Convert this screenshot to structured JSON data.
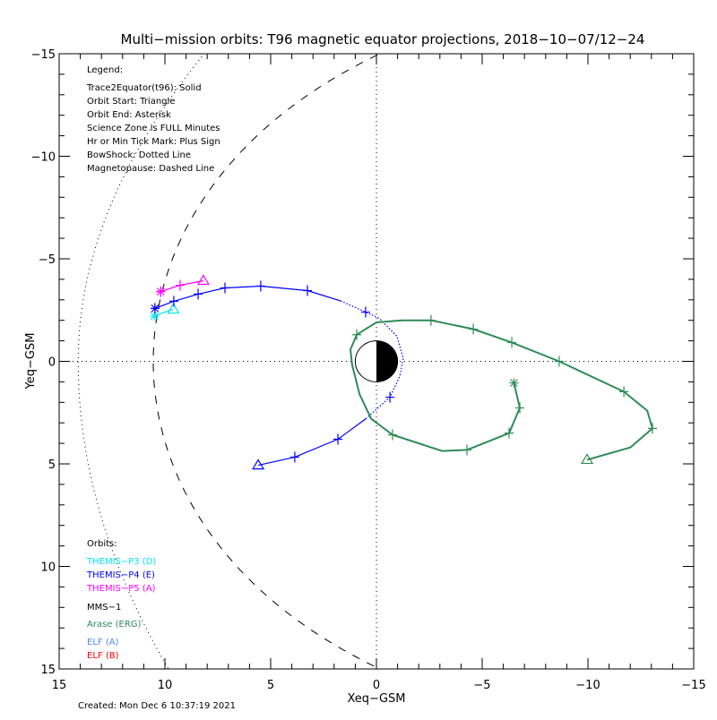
{
  "chart_data": {
    "type": "line",
    "title": "Multi−mission orbits: T96 magnetic equator projections, 2018−10−07/12−24",
    "xlabel": "Xeq−GSM",
    "ylabel": "Yeq−GSM",
    "xlim": [
      15,
      -15
    ],
    "ylim": [
      -15,
      15
    ],
    "x_tick_labels": [
      "15",
      "10",
      "5",
      "0",
      "−5",
      "−10",
      "−15"
    ],
    "x_tick_values": [
      15,
      10,
      5,
      0,
      -5,
      -10,
      -15
    ],
    "y_tick_labels": [
      "−15",
      "−10",
      "−5",
      "0",
      "5",
      "10",
      "15"
    ],
    "y_tick_values": [
      -15,
      -10,
      -5,
      0,
      5,
      10,
      15
    ],
    "grid": false,
    "zero_lines": "dotted",
    "legend": {
      "heading": "Legend:",
      "lines": [
        "Trace2Equator(t96): Solid",
        "Orbit Start: Triangle",
        "Orbit End: Asterisk",
        "Science Zone is FULL Minutes",
        "Hr or Min Tick Mark: Plus Sign",
        "BowShock: Dotted Line",
        "Magnetopause: Dashed Line"
      ],
      "placement": "top-left"
    },
    "orbits_legend": {
      "heading": "Orbits:",
      "entries": [
        {
          "label": "THEMIS−P3 (D)",
          "color": "#00e5ee"
        },
        {
          "label": "THEMIS−P4 (E)",
          "color": "#0000ff"
        },
        {
          "label": "THEMIS−P5 (A)",
          "color": "#ff00ff"
        },
        {
          "label": "MMS−1",
          "color": "#000000"
        },
        {
          "label": "Arase (ERG)",
          "color": "#2e8b57"
        },
        {
          "label": "ELF (A)",
          "color": "#4a8af4"
        },
        {
          "label": "ELF (B)",
          "color": "#ff0000"
        }
      ],
      "placement": "bottom-left"
    },
    "boundaries": {
      "bowshock": {
        "nose_x": 14.1,
        "x_at_y_minus15": 8.14,
        "x_at_y_plus15": 9.83
      },
      "magnetopause": {
        "r0": 10.55,
        "alpha": 0.5
      }
    },
    "series": [
      {
        "name": "THEMIS−P3 (D)",
        "color": "#00e5ee",
        "points": [
          [
            9.6,
            -2.53
          ],
          [
            10.1,
            -2.37
          ],
          [
            10.5,
            -2.2
          ]
        ],
        "ticks": [],
        "dotted_from": null,
        "dotted_to": null
      },
      {
        "name": "THEMIS−P4 (E)",
        "color": "#0000ff",
        "points": [
          [
            5.59,
            5.07
          ],
          [
            3.86,
            4.67
          ],
          [
            1.82,
            3.8
          ],
          [
            0.5,
            2.8
          ],
          [
            -0.64,
            1.75
          ],
          [
            -1.1,
            0.74
          ],
          [
            -1.27,
            -0.13
          ],
          [
            -0.97,
            -1.22
          ],
          [
            -0.13,
            -2.1
          ],
          [
            0.51,
            -2.4
          ],
          [
            1.7,
            -2.95
          ],
          [
            3.26,
            -3.45
          ],
          [
            5.47,
            -3.67
          ],
          [
            7.16,
            -3.58
          ],
          [
            8.43,
            -3.28
          ],
          [
            9.58,
            -2.93
          ],
          [
            10.47,
            -2.58
          ]
        ],
        "ticks": [
          1,
          2,
          4,
          9,
          11,
          12,
          13,
          14,
          15,
          16
        ],
        "dotted_from": 3,
        "dotted_to": 10
      },
      {
        "name": "THEMIS−P5 (A)",
        "color": "#ff00ff",
        "points": [
          [
            8.18,
            -3.93
          ],
          [
            9.28,
            -3.71
          ],
          [
            10.2,
            -3.4
          ]
        ],
        "ticks": [
          1,
          2
        ],
        "dotted_from": null,
        "dotted_to": null
      },
      {
        "name": "Arase (ERG)",
        "color": "#2e8b57",
        "points": [
          [
            -9.96,
            4.8
          ],
          [
            -12.0,
            4.2
          ],
          [
            -13.05,
            3.27
          ],
          [
            -12.8,
            2.4
          ],
          [
            -11.7,
            1.48
          ],
          [
            -8.64,
            0
          ],
          [
            -6.4,
            -0.92
          ],
          [
            -4.58,
            -1.57
          ],
          [
            -2.58,
            -2.0
          ],
          [
            -1.2,
            -2.0
          ],
          [
            0,
            -1.9
          ],
          [
            0.93,
            -1.3
          ],
          [
            1.23,
            -0.57
          ],
          [
            1.15,
            0.17
          ],
          [
            0.8,
            1.6
          ],
          [
            0.25,
            2.8
          ],
          [
            -0.76,
            3.58
          ],
          [
            -3.1,
            4.37
          ],
          [
            -4.28,
            4.32
          ],
          [
            -6.27,
            3.5
          ],
          [
            -6.78,
            2.27
          ],
          [
            -6.5,
            1.05
          ]
        ],
        "ticks": [
          2,
          4,
          5,
          6,
          7,
          8,
          11,
          16,
          18,
          19,
          20
        ],
        "dotted_from": null,
        "dotted_to": null
      }
    ]
  },
  "footer": {
    "created": "Created: Mon Dec  6 10:37:19 2021"
  }
}
